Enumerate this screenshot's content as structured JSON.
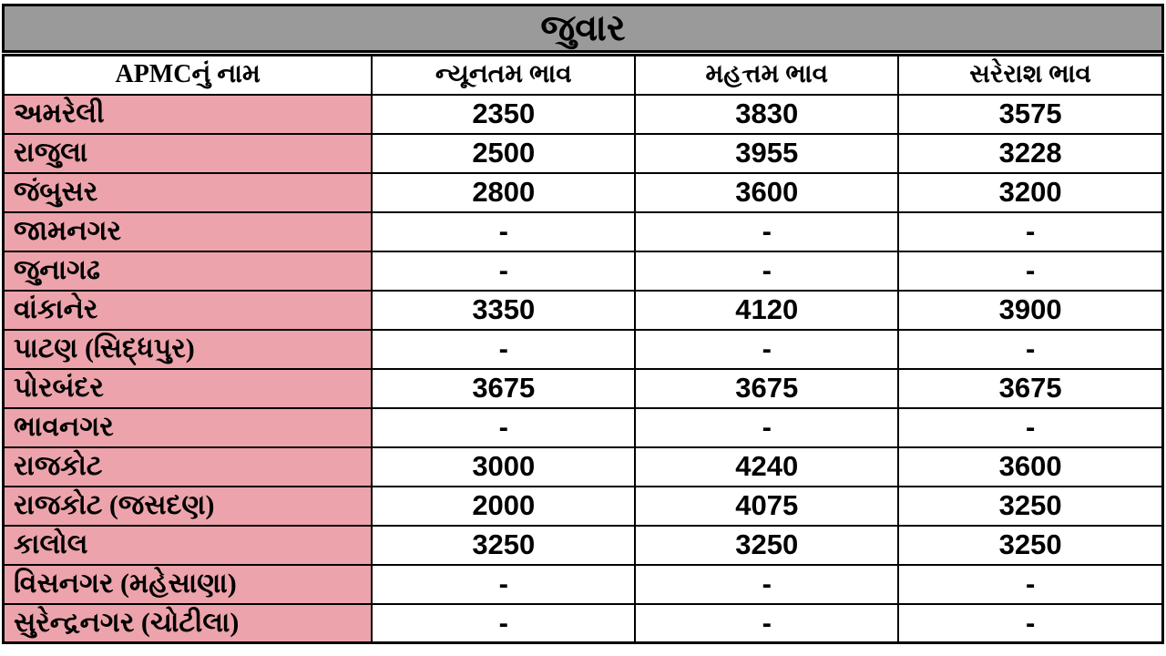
{
  "title": "જુવાર",
  "colors": {
    "title_bg": "#9a9a9a",
    "name_bg": "#eda3ab",
    "value_bg": "#ffffff",
    "border_color": "#000000",
    "text_color": "#000000"
  },
  "chart_data": {
    "type": "table",
    "title": "જુવાર",
    "columns": [
      "APMCનું નામ",
      "ન્યૂનતમ ભાવ",
      "મહત્તમ ભાવ",
      "સરેરાશ ભાવ"
    ],
    "rows": [
      [
        "અમરેલી",
        "2350",
        "3830",
        "3575"
      ],
      [
        "રાજુલા",
        "2500",
        "3955",
        "3228"
      ],
      [
        "જંબુસર",
        "2800",
        "3600",
        "3200"
      ],
      [
        "જામનગર",
        "-",
        "-",
        "-"
      ],
      [
        "જુનાગઢ",
        "-",
        "-",
        "-"
      ],
      [
        "વાંકાનેર",
        "3350",
        "4120",
        "3900"
      ],
      [
        "પાટણ (સિદ્ધપુર)",
        "-",
        "-",
        "-"
      ],
      [
        "પોરબંદર",
        "3675",
        "3675",
        "3675"
      ],
      [
        "ભાવનગર",
        "-",
        "-",
        "-"
      ],
      [
        "રાજકોટ",
        "3000",
        "4240",
        "3600"
      ],
      [
        "રાજકોટ  (જસદણ)",
        "2000",
        "4075",
        "3250"
      ],
      [
        "કાલોલ",
        "3250",
        "3250",
        "3250"
      ],
      [
        "વિસનગર (મહેસાણા)",
        "-",
        "-",
        "-"
      ],
      [
        "સુરેન્દ્રનગર (ચોટીલા)",
        "-",
        "-",
        "-"
      ]
    ]
  }
}
